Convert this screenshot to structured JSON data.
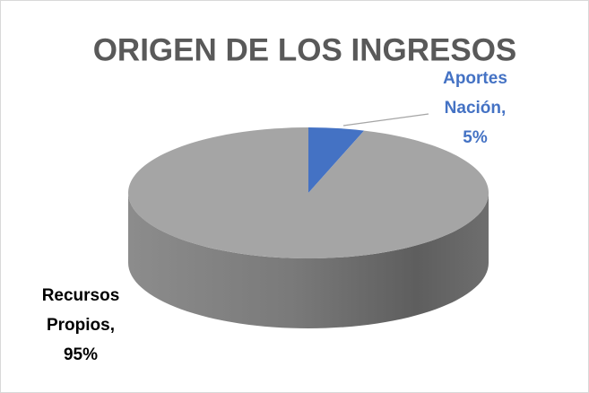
{
  "chart_data": {
    "type": "pie",
    "title": "ORIGEN DE LOS INGRESOS",
    "categories": [
      "Aportes Nación",
      "Recursos Propios"
    ],
    "values": [
      5,
      95
    ],
    "value_labels": [
      "5%",
      "95%"
    ],
    "label_separator": ",",
    "colors": [
      "#4472c4",
      "#a5a5a5"
    ],
    "label_colors": [
      "#4472c4",
      "#000000"
    ]
  }
}
